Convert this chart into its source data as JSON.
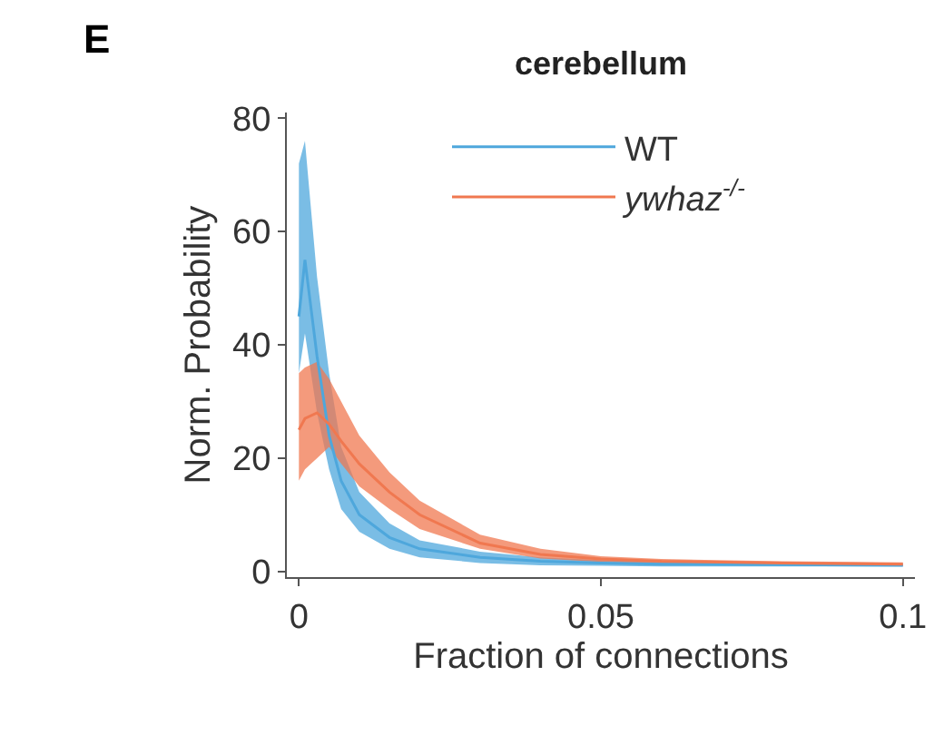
{
  "chart_data": {
    "type": "line",
    "title": "cerebellum",
    "xlabel": "Fraction of connections",
    "ylabel": "Norm. Probability",
    "annotations": [
      "E"
    ],
    "x": [
      0,
      0.001,
      0.003,
      0.005,
      0.007,
      0.01,
      0.015,
      0.02,
      0.03,
      0.04,
      0.05,
      0.06,
      0.08,
      0.1
    ],
    "series": [
      {
        "name": "WT",
        "color": "#4ea7dc",
        "values": [
          45,
          55,
          38,
          24,
          16,
          10,
          6,
          4,
          2.5,
          1.8,
          1.5,
          1.3,
          1.2,
          1.1
        ],
        "upper": [
          72,
          76,
          52,
          35,
          22,
          14,
          8.5,
          5.5,
          3.5,
          2.5,
          2,
          1.7,
          1.5,
          1.3
        ],
        "lower": [
          35,
          42,
          28,
          18,
          11,
          7,
          4,
          2.5,
          1.5,
          1.1,
          1,
          0.9,
          0.9,
          0.9
        ]
      },
      {
        "name": "ywhaz$^{-/-}$",
        "color": "#f07850",
        "values": [
          25,
          27,
          28,
          26,
          23,
          19,
          14,
          10,
          5,
          3,
          2.2,
          1.8,
          1.5,
          1.3
        ],
        "upper": [
          35,
          36,
          37,
          34,
          30,
          24,
          17.5,
          12.5,
          6.5,
          4,
          2.7,
          2.2,
          1.8,
          1.6
        ],
        "lower": [
          16,
          18,
          20,
          22,
          19,
          15,
          11,
          7.5,
          4,
          2.3,
          1.7,
          1.4,
          1.2,
          1.0
        ]
      }
    ],
    "xlim": [
      -0.002,
      0.102
    ],
    "xticks": [
      0,
      0.05,
      0.1
    ],
    "ylim": [
      -1,
      81
    ],
    "yticks": [
      0,
      20,
      40,
      60,
      80
    ],
    "legend": "top",
    "marker": "none",
    "line_style": "solid"
  }
}
